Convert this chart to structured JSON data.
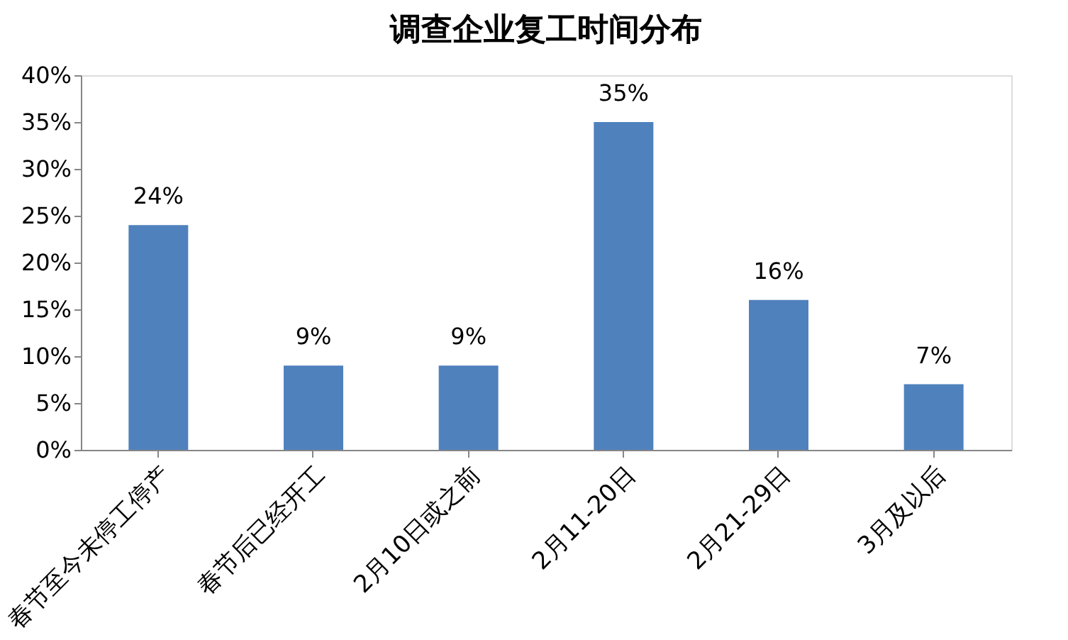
{
  "chart_data": {
    "type": "bar",
    "title": "调查企业复工时间分布",
    "categories": [
      "春节至今未停工停产",
      "春节后已经开工",
      "2月10日或之前",
      "2月11-20日",
      "2月21-29日",
      "3月及以后"
    ],
    "values": [
      24,
      9,
      9,
      35,
      16,
      7
    ],
    "value_labels": [
      "24%",
      "9%",
      "9%",
      "35%",
      "16%",
      "7%"
    ],
    "color": "#4f81bd",
    "ylim": [
      0,
      40
    ],
    "yticks": [
      {
        "value": 0,
        "label": "0%"
      },
      {
        "value": 5,
        "label": "5%"
      },
      {
        "value": 10,
        "label": "10%"
      },
      {
        "value": 15,
        "label": "15%"
      },
      {
        "value": 20,
        "label": "20%"
      },
      {
        "value": 25,
        "label": "25%"
      },
      {
        "value": 30,
        "label": "30%"
      },
      {
        "value": 35,
        "label": "35%"
      },
      {
        "value": 40,
        "label": "40%"
      }
    ],
    "grid": false
  }
}
